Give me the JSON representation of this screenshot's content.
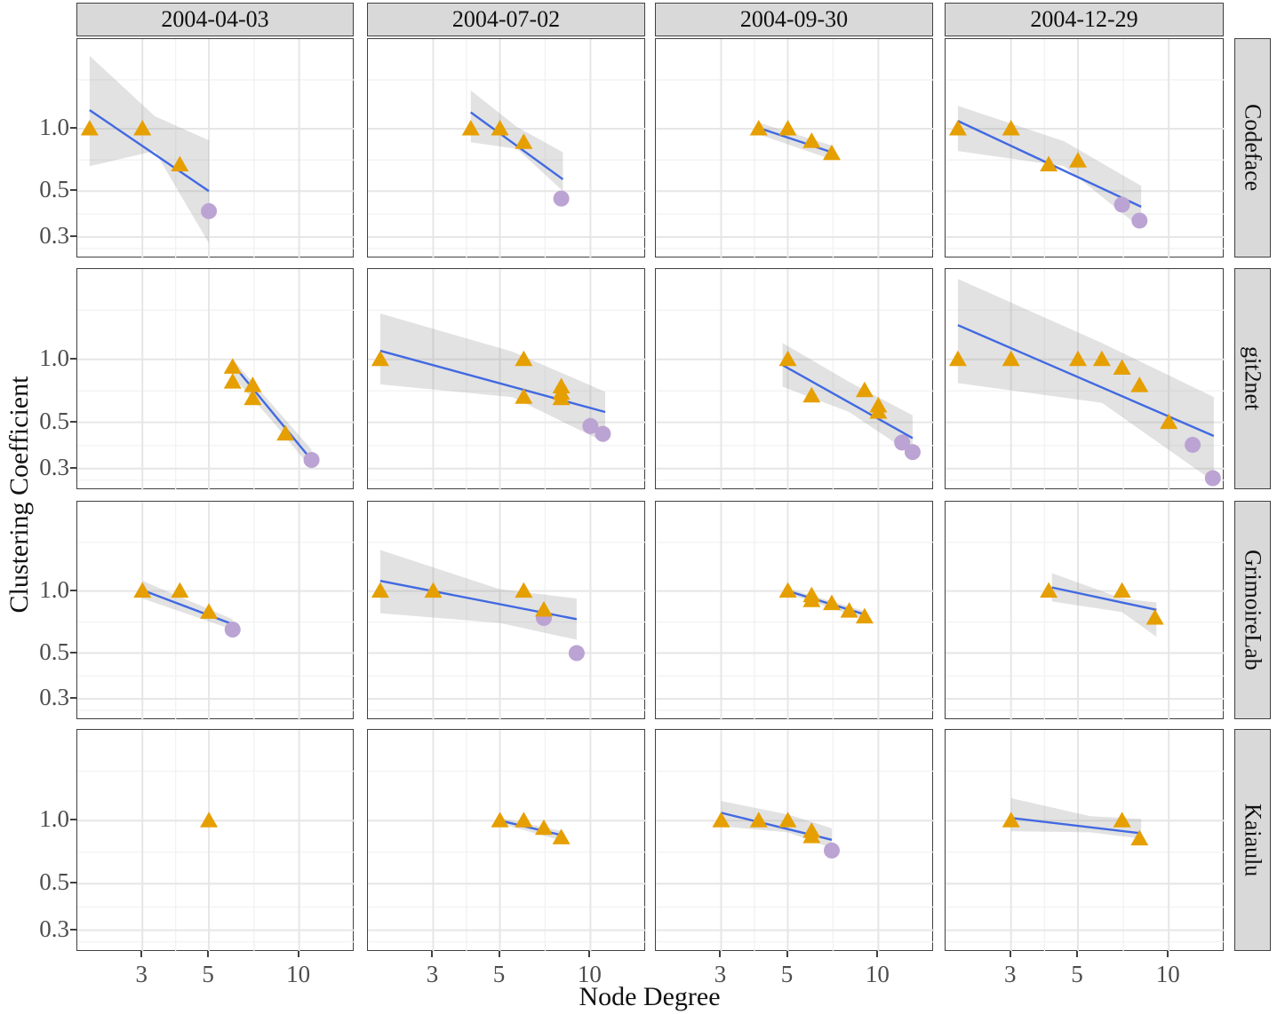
{
  "figure": {
    "x_axis_title": "Node Degree",
    "y_axis_title": "Clustering Coefficient",
    "col_labels": [
      "2004-04-03",
      "2004-07-02",
      "2004-09-30",
      "2004-12-29"
    ],
    "row_labels": [
      "Codeface",
      "git2net",
      "GrimoireLab",
      "Kaiaulu"
    ],
    "x_tick_labels": [
      "3",
      "5",
      "10"
    ],
    "y_tick_labels": [
      "1.0",
      "0.5",
      "0.3"
    ]
  },
  "style": {
    "triangle_color": "#e69f00",
    "circle_color": "#bba3d3",
    "trend_color": "#4169e1",
    "band_color": "rgba(150,150,150,0.28)",
    "strip_bg": "#d9d9d9",
    "panel_border": "#404040",
    "grid_major": "#e6e6e6",
    "grid_minor": "#f2f2f2",
    "tick_text": "#4d4d4d"
  },
  "chart_data": {
    "type": "scatter",
    "facet_cols": [
      "2004-04-03",
      "2004-07-02",
      "2004-09-30",
      "2004-12-29"
    ],
    "facet_rows": [
      "Codeface",
      "git2net",
      "GrimoireLab",
      "Kaiaulu"
    ],
    "x_scale": "log10",
    "y_scale": "log10",
    "x_range": [
      1.82,
      15.3
    ],
    "y_range": [
      0.236,
      2.71
    ],
    "x_ticks": [
      3,
      5,
      10
    ],
    "y_ticks": [
      1.0,
      0.5,
      0.3
    ],
    "x_minor_gridlines": [
      3.873,
      7.071
    ],
    "y_minor_gridlines": [
      1.722,
      0.707,
      0.387,
      0.264
    ],
    "xlabel": "Node Degree",
    "ylabel": "Clustering Coefficient",
    "point_series": [
      {
        "shape": "triangle",
        "color": "#e69f00"
      },
      {
        "shape": "circle",
        "color": "#bba3d3"
      }
    ],
    "panels": [
      {
        "row": "Codeface",
        "col": "2004-04-03",
        "triangles": [
          [
            2,
            1.0
          ],
          [
            3,
            1.0
          ],
          [
            4,
            0.67
          ]
        ],
        "circles": [
          [
            5,
            0.4
          ]
        ],
        "trend": [
          2,
          1.23,
          5,
          0.5
        ],
        "band": {
          "x": [
            2,
            3.3,
            5
          ],
          "upper": [
            2.25,
            1.15,
            0.88
          ],
          "lower": [
            0.66,
            0.78,
            0.28
          ]
        }
      },
      {
        "row": "Codeface",
        "col": "2004-07-02",
        "triangles": [
          [
            4,
            1.0
          ],
          [
            5,
            1.0
          ],
          [
            6,
            0.86
          ]
        ],
        "circles": [
          [
            8,
            0.46
          ]
        ],
        "trend": [
          4,
          1.2,
          8.1,
          0.57
        ],
        "band": {
          "x": [
            4,
            5.7,
            8.1
          ],
          "upper": [
            1.53,
            1.02,
            0.77
          ],
          "lower": [
            0.86,
            0.8,
            0.5
          ]
        }
      },
      {
        "row": "Codeface",
        "col": "2004-09-30",
        "triangles": [
          [
            4,
            1.0
          ],
          [
            5,
            1.0
          ],
          [
            6,
            0.87
          ],
          [
            7,
            0.76
          ]
        ],
        "circles": [],
        "trend": [
          4,
          1.01,
          7,
          0.77
        ],
        "band": {
          "x": [
            4,
            7
          ],
          "upper": [
            1.07,
            0.83
          ],
          "lower": [
            0.94,
            0.71
          ]
        }
      },
      {
        "row": "Codeface",
        "col": "2004-12-29",
        "triangles": [
          [
            2,
            1.0
          ],
          [
            3,
            1.0
          ],
          [
            4,
            0.67
          ],
          [
            5,
            0.7
          ]
        ],
        "circles": [
          [
            7,
            0.43
          ],
          [
            8,
            0.36
          ]
        ],
        "trend": [
          2,
          1.09,
          8.1,
          0.42
        ],
        "band": {
          "x": [
            2,
            4.5,
            8.1
          ],
          "upper": [
            1.29,
            0.87,
            0.53
          ],
          "lower": [
            0.78,
            0.66,
            0.33
          ]
        }
      },
      {
        "row": "git2net",
        "col": "2004-04-03",
        "triangles": [
          [
            6,
            0.92
          ],
          [
            6,
            0.78
          ],
          [
            7,
            0.75
          ],
          [
            7,
            0.65
          ],
          [
            9,
            0.44
          ]
        ],
        "circles": [
          [
            11,
            0.33
          ]
        ],
        "trend": [
          6,
          0.95,
          11,
          0.33
        ],
        "band": {
          "x": [
            6,
            8.2,
            11
          ],
          "upper": [
            1.0,
            0.6,
            0.37
          ],
          "lower": [
            0.83,
            0.5,
            0.3
          ]
        }
      },
      {
        "row": "git2net",
        "col": "2004-07-02",
        "triangles": [
          [
            2,
            1.0
          ],
          [
            6,
            1.0
          ],
          [
            6,
            0.66
          ],
          [
            8,
            0.74
          ],
          [
            8,
            0.69
          ],
          [
            8,
            0.65
          ]
        ],
        "circles": [
          [
            10,
            0.48
          ],
          [
            11,
            0.44
          ]
        ],
        "trend": [
          2,
          1.1,
          11.2,
          0.56
        ],
        "band": {
          "x": [
            2,
            5.5,
            11.2
          ],
          "upper": [
            1.66,
            1.09,
            0.7
          ],
          "lower": [
            0.76,
            0.66,
            0.4
          ]
        }
      },
      {
        "row": "git2net",
        "col": "2004-09-30",
        "triangles": [
          [
            5,
            1.0
          ],
          [
            6,
            0.67
          ],
          [
            9,
            0.71
          ],
          [
            10,
            0.6
          ],
          [
            10,
            0.56
          ]
        ],
        "circles": [
          [
            12,
            0.4
          ],
          [
            13,
            0.36
          ]
        ],
        "trend": [
          4.8,
          0.94,
          13,
          0.42
        ],
        "band": {
          "x": [
            4.8,
            8,
            13
          ],
          "upper": [
            1.2,
            0.78,
            0.54
          ],
          "lower": [
            0.74,
            0.56,
            0.35
          ]
        }
      },
      {
        "row": "git2net",
        "col": "2004-12-29",
        "triangles": [
          [
            2,
            1.0
          ],
          [
            3,
            1.0
          ],
          [
            5,
            1.0
          ],
          [
            6,
            1.0
          ],
          [
            7,
            0.91
          ],
          [
            8,
            0.75
          ],
          [
            10,
            0.5
          ]
        ],
        "circles": [
          [
            12,
            0.39
          ],
          [
            14,
            0.27
          ]
        ],
        "trend": [
          2,
          1.46,
          14.1,
          0.43
        ],
        "band": {
          "x": [
            2,
            6,
            14.1
          ],
          "upper": [
            2.43,
            1.2,
            0.66
          ],
          "lower": [
            0.77,
            0.62,
            0.26
          ]
        }
      },
      {
        "row": "GrimoireLab",
        "col": "2004-04-03",
        "triangles": [
          [
            3,
            1.0
          ],
          [
            4,
            1.0
          ],
          [
            5,
            0.79
          ]
        ],
        "circles": [
          [
            6,
            0.65
          ]
        ],
        "trend": [
          3,
          1.01,
          6,
          0.69
        ],
        "band": {
          "x": [
            3,
            6
          ],
          "upper": [
            1.12,
            0.73
          ],
          "lower": [
            0.92,
            0.65
          ]
        }
      },
      {
        "row": "GrimoireLab",
        "col": "2004-07-02",
        "triangles": [
          [
            2,
            1.0
          ],
          [
            3,
            1.0
          ],
          [
            6,
            1.0
          ],
          [
            7,
            0.81
          ]
        ],
        "circles": [
          [
            7,
            0.74
          ],
          [
            9,
            0.5
          ]
        ],
        "trend": [
          2,
          1.12,
          9,
          0.73
        ],
        "band": {
          "x": [
            2,
            5,
            9
          ],
          "upper": [
            1.58,
            1.02,
            0.92
          ],
          "lower": [
            0.78,
            0.7,
            0.58
          ]
        }
      },
      {
        "row": "GrimoireLab",
        "col": "2004-09-30",
        "triangles": [
          [
            5,
            1.0
          ],
          [
            6,
            0.95
          ],
          [
            6,
            0.9
          ],
          [
            7,
            0.87
          ],
          [
            8,
            0.8
          ],
          [
            9,
            0.75
          ]
        ],
        "circles": [],
        "trend": [
          5,
          1.0,
          9,
          0.77
        ],
        "band": {
          "x": [
            5,
            9
          ],
          "upper": [
            1.03,
            0.8
          ],
          "lower": [
            0.97,
            0.73
          ]
        }
      },
      {
        "row": "GrimoireLab",
        "col": "2004-12-29",
        "triangles": [
          [
            4,
            1.0
          ],
          [
            7,
            1.0
          ],
          [
            9,
            0.74
          ]
        ],
        "circles": [],
        "trend": [
          4.1,
          1.04,
          9.1,
          0.81
        ],
        "band": {
          "x": [
            4.1,
            7,
            9.1
          ],
          "upper": [
            1.22,
            0.92,
            0.88
          ],
          "lower": [
            0.89,
            0.79,
            0.6
          ]
        }
      },
      {
        "row": "Kaiaulu",
        "col": "2004-04-03",
        "triangles": [
          [
            5,
            1.0
          ]
        ],
        "circles": [],
        "trend": null,
        "band": null
      },
      {
        "row": "Kaiaulu",
        "col": "2004-07-02",
        "triangles": [
          [
            5,
            1.0
          ],
          [
            6,
            1.0
          ],
          [
            7,
            0.92
          ],
          [
            8,
            0.83
          ]
        ],
        "circles": [],
        "trend": [
          5,
          1.0,
          8.1,
          0.85
        ],
        "band": {
          "x": [
            5,
            8.1
          ],
          "upper": [
            1.03,
            0.89
          ],
          "lower": [
            0.97,
            0.8
          ]
        }
      },
      {
        "row": "Kaiaulu",
        "col": "2004-09-30",
        "triangles": [
          [
            3,
            1.0
          ],
          [
            4,
            1.0
          ],
          [
            5,
            1.0
          ],
          [
            6,
            0.89
          ],
          [
            6,
            0.84
          ]
        ],
        "circles": [
          [
            7,
            0.72
          ]
        ],
        "trend": [
          3,
          1.09,
          7,
          0.81
        ],
        "band": {
          "x": [
            3,
            5,
            7
          ],
          "upper": [
            1.24,
            1.07,
            0.92
          ],
          "lower": [
            0.94,
            0.88,
            0.74
          ]
        }
      },
      {
        "row": "Kaiaulu",
        "col": "2004-12-29",
        "triangles": [
          [
            3,
            1.0
          ],
          [
            7,
            1.0
          ],
          [
            8,
            0.82
          ]
        ],
        "circles": [],
        "trend": [
          3,
          1.03,
          8.1,
          0.87
        ],
        "band": {
          "x": [
            3,
            5.5,
            8.1
          ],
          "upper": [
            1.28,
            1.05,
            1.02
          ],
          "lower": [
            0.89,
            0.88,
            0.82
          ]
        }
      }
    ]
  }
}
